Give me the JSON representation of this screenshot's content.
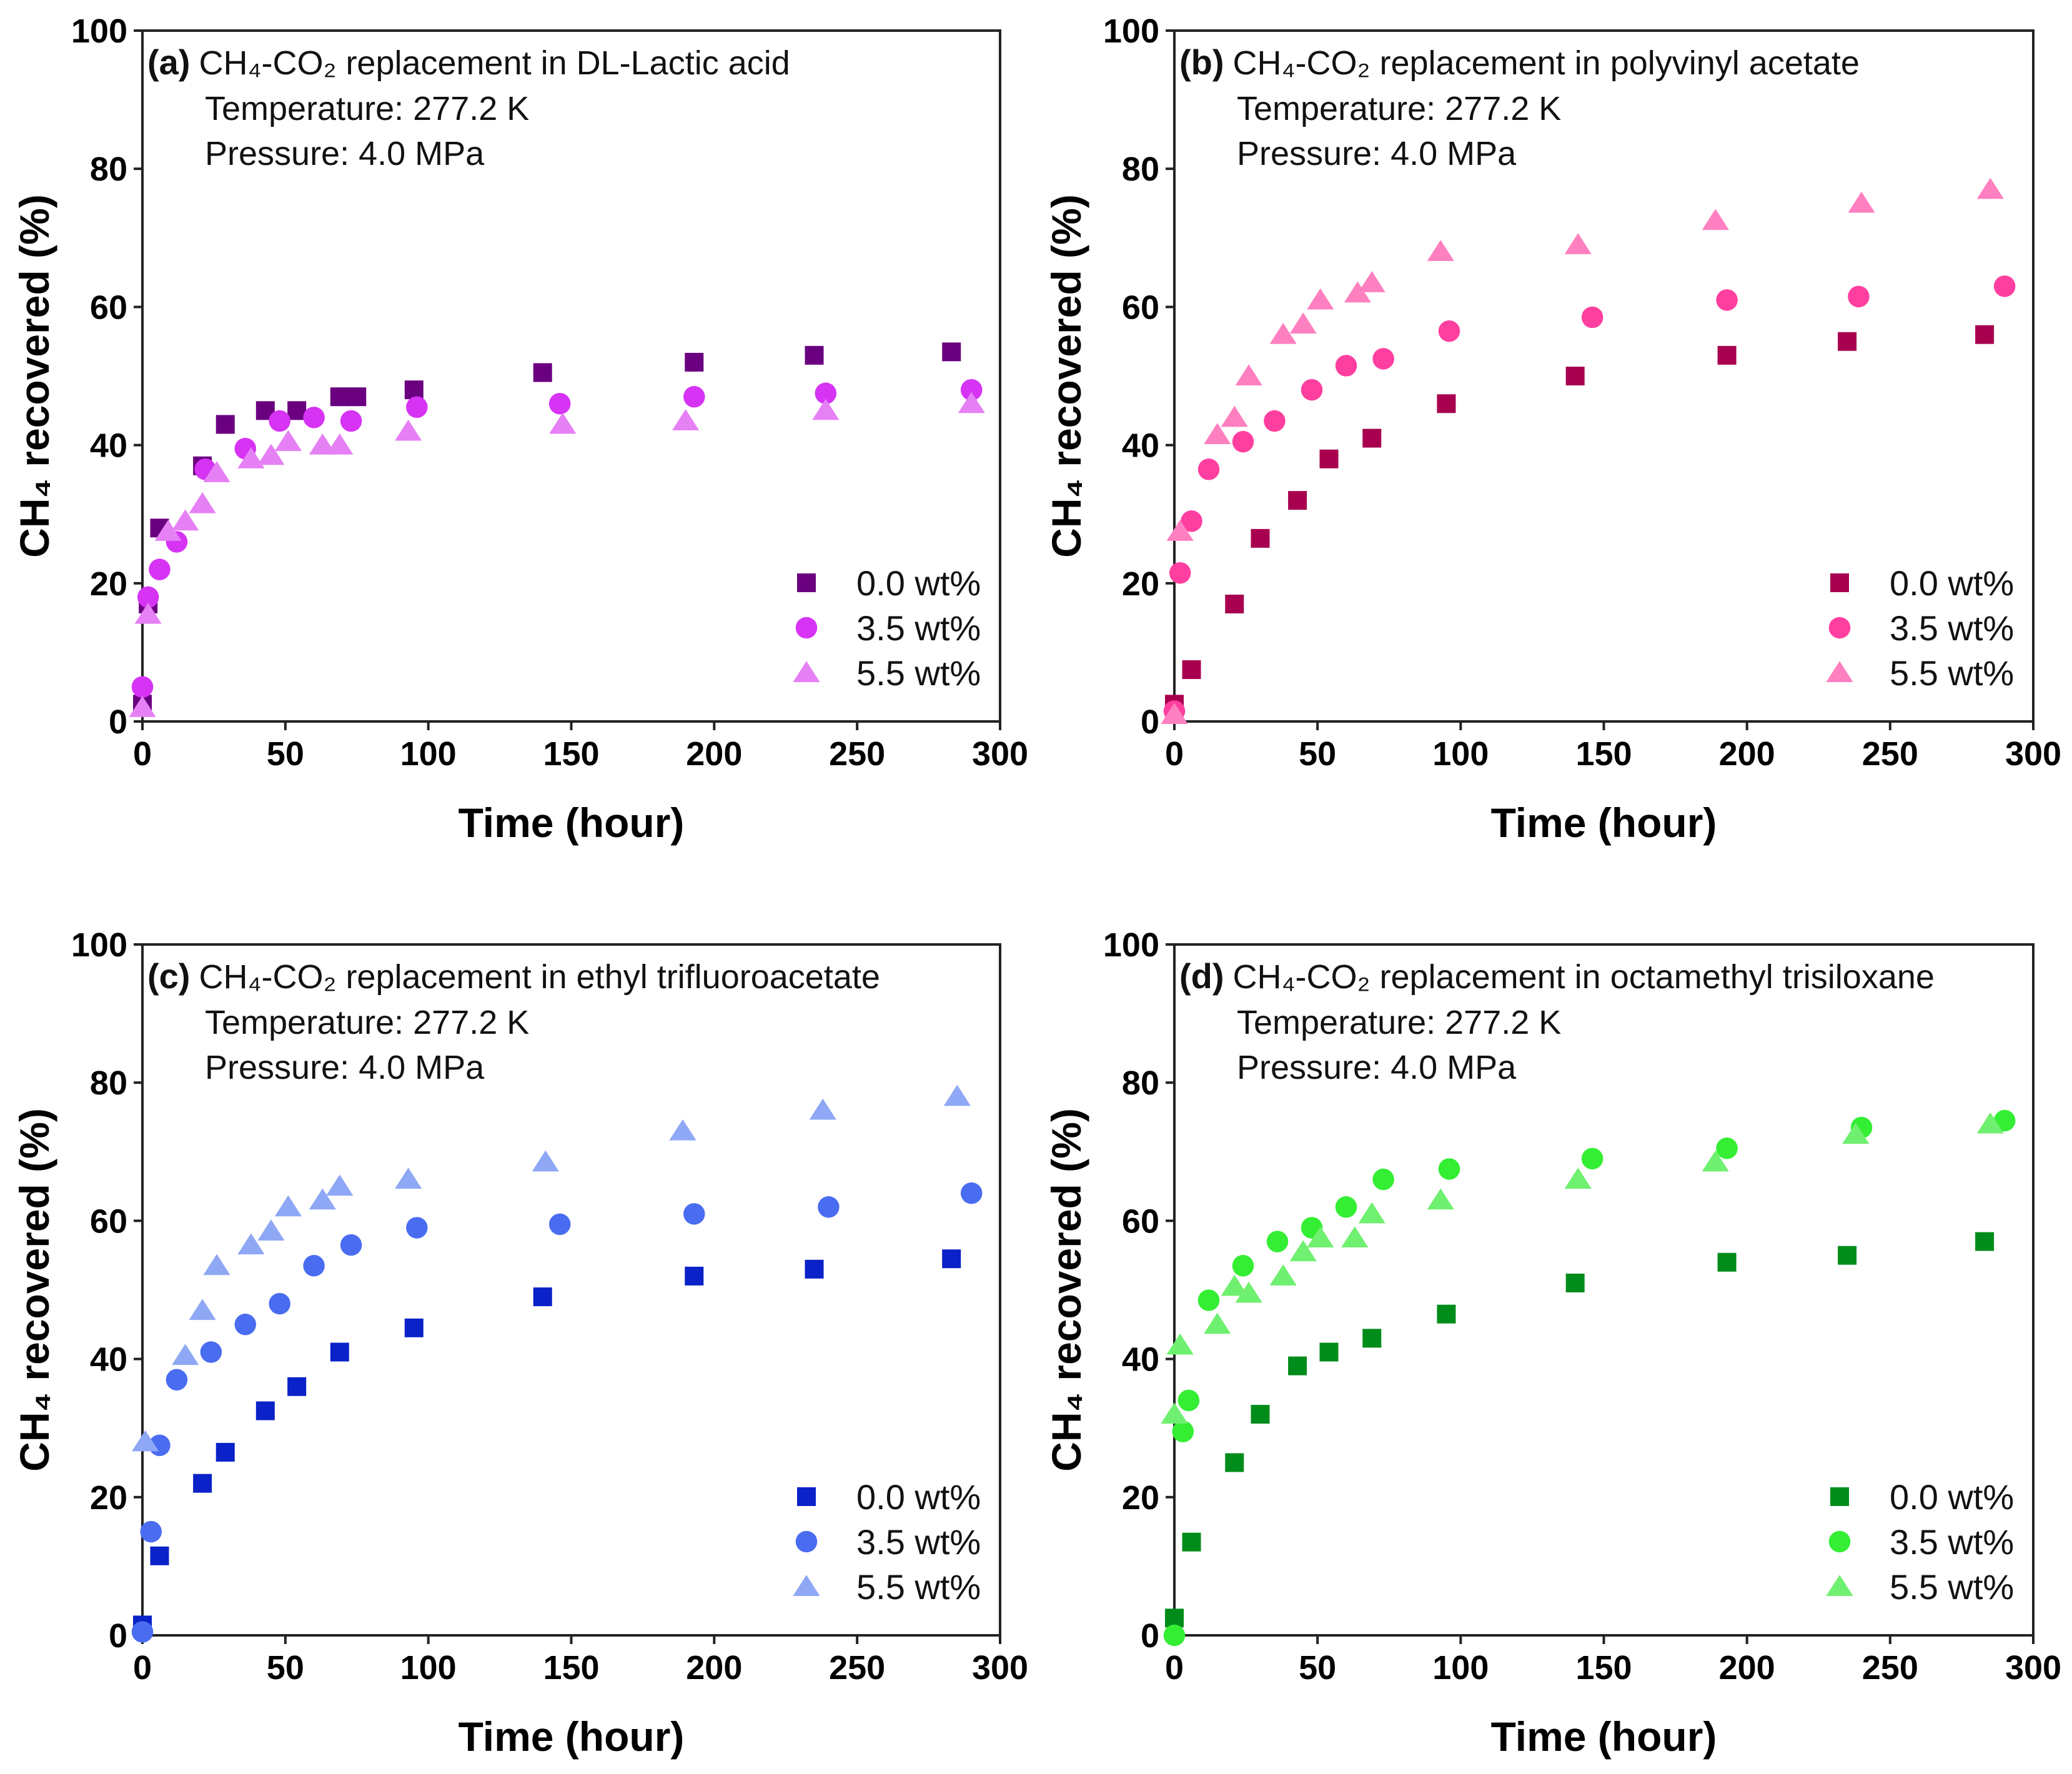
{
  "chart_data": [
    {
      "type": "scatter",
      "panel_label": "(a)",
      "title": "CH₄-CO₂ replacement in DL-Lactic acid",
      "annotations": [
        "Temperature: 277.2 K",
        "Pressure: 4.0 MPa"
      ],
      "xlabel": "Time (hour)",
      "ylabel": "CH₄ recovered (%)",
      "xlim": [
        0,
        300
      ],
      "ylim": [
        0,
        100
      ],
      "xticks": [
        0,
        50,
        100,
        150,
        200,
        250,
        300
      ],
      "yticks": [
        0,
        20,
        40,
        60,
        80,
        100
      ],
      "legend_position": "bottom-right",
      "series": [
        {
          "name": "0.0 wt%",
          "marker": "square",
          "color": "#6a0080",
          "points": [
            [
              0,
              2.5
            ],
            [
              2,
              17
            ],
            [
              6,
              28
            ],
            [
              21,
              37
            ],
            [
              29,
              43
            ],
            [
              43,
              45
            ],
            [
              54,
              45
            ],
            [
              69,
              47
            ],
            [
              75,
              47
            ],
            [
              95,
              48
            ],
            [
              140,
              50.5
            ],
            [
              193,
              52
            ],
            [
              235,
              53
            ],
            [
              283,
              53.5
            ]
          ]
        },
        {
          "name": "3.5 wt%",
          "marker": "circle",
          "color": "#d633f5",
          "points": [
            [
              0,
              5
            ],
            [
              2,
              18
            ],
            [
              6,
              22
            ],
            [
              12,
              26
            ],
            [
              22,
              36.5
            ],
            [
              36,
              39.5
            ],
            [
              48,
              43.5
            ],
            [
              60,
              44
            ],
            [
              73,
              43.5
            ],
            [
              96,
              45.5
            ],
            [
              146,
              46
            ],
            [
              193,
              47
            ],
            [
              239,
              47.5
            ],
            [
              290,
              48
            ]
          ]
        },
        {
          "name": "5.5 wt%",
          "marker": "triangle",
          "color": "#e680f5",
          "points": [
            [
              0,
              2
            ],
            [
              2,
              15.5
            ],
            [
              9,
              27.5
            ],
            [
              15,
              29
            ],
            [
              21,
              31.5
            ],
            [
              26,
              36
            ],
            [
              38,
              38
            ],
            [
              45,
              38.5
            ],
            [
              51,
              40.5
            ],
            [
              63,
              40
            ],
            [
              69,
              40
            ],
            [
              93,
              42
            ],
            [
              147,
              43
            ],
            [
              190,
              43.5
            ],
            [
              239,
              45
            ],
            [
              290,
              46
            ]
          ]
        }
      ]
    },
    {
      "type": "scatter",
      "panel_label": "(b)",
      "title": "CH₄-CO₂ replacement in polyvinyl acetate",
      "annotations": [
        "Temperature: 277.2 K",
        "Pressure: 4.0 MPa"
      ],
      "xlabel": "Time (hour)",
      "ylabel": "CH₄ recovered (%)",
      "xlim": [
        0,
        300
      ],
      "ylim": [
        0,
        100
      ],
      "xticks": [
        0,
        50,
        100,
        150,
        200,
        250,
        300
      ],
      "yticks": [
        0,
        20,
        40,
        60,
        80,
        100
      ],
      "legend_position": "bottom-right",
      "series": [
        {
          "name": "0.0 wt%",
          "marker": "square",
          "color": "#a8004f",
          "points": [
            [
              0,
              2.5
            ],
            [
              6,
              7.5
            ],
            [
              21,
              17
            ],
            [
              30,
              26.5
            ],
            [
              43,
              32
            ],
            [
              54,
              38
            ],
            [
              69,
              41
            ],
            [
              95,
              46
            ],
            [
              140,
              50
            ],
            [
              193,
              53
            ],
            [
              235,
              55
            ],
            [
              283,
              56
            ]
          ]
        },
        {
          "name": "3.5 wt%",
          "marker": "circle",
          "color": "#ff3fa0",
          "points": [
            [
              0,
              1.5
            ],
            [
              2,
              21.5
            ],
            [
              6,
              29
            ],
            [
              12,
              36.5
            ],
            [
              24,
              40.5
            ],
            [
              35,
              43.5
            ],
            [
              48,
              48
            ],
            [
              60,
              51.5
            ],
            [
              73,
              52.5
            ],
            [
              96,
              56.5
            ],
            [
              146,
              58.5
            ],
            [
              193,
              61
            ],
            [
              239,
              61.5
            ],
            [
              290,
              63
            ]
          ]
        },
        {
          "name": "5.5 wt%",
          "marker": "triangle",
          "color": "#ff80c0",
          "points": [
            [
              0,
              1
            ],
            [
              2,
              27.5
            ],
            [
              15,
              41.5
            ],
            [
              21,
              44
            ],
            [
              26,
              50
            ],
            [
              38,
              56
            ],
            [
              45,
              57.5
            ],
            [
              51,
              61
            ],
            [
              64,
              62
            ],
            [
              69,
              63.5
            ],
            [
              93,
              68
            ],
            [
              141,
              69
            ],
            [
              189,
              72.5
            ],
            [
              240,
              75
            ],
            [
              285,
              77
            ]
          ]
        }
      ]
    },
    {
      "type": "scatter",
      "panel_label": "(c)",
      "title": "CH₄-CO₂ replacement in ethyl trifluoroacetate",
      "annotations": [
        "Temperature: 277.2 K",
        "Pressure: 4.0 MPa"
      ],
      "xlabel": "Time (hour)",
      "ylabel": "CH₄ recovered (%)",
      "xlim": [
        0,
        300
      ],
      "ylim": [
        0,
        100
      ],
      "xticks": [
        0,
        50,
        100,
        150,
        200,
        250,
        300
      ],
      "yticks": [
        0,
        20,
        40,
        60,
        80,
        100
      ],
      "legend_position": "bottom-right",
      "series": [
        {
          "name": "0.0 wt%",
          "marker": "square",
          "color": "#0a22c8",
          "points": [
            [
              0,
              1.5
            ],
            [
              6,
              11.5
            ],
            [
              21,
              22
            ],
            [
              29,
              26.5
            ],
            [
              43,
              32.5
            ],
            [
              54,
              36
            ],
            [
              69,
              41
            ],
            [
              95,
              44.5
            ],
            [
              140,
              49
            ],
            [
              193,
              52
            ],
            [
              235,
              53
            ],
            [
              283,
              54.5
            ]
          ]
        },
        {
          "name": "3.5 wt%",
          "marker": "circle",
          "color": "#4a6cf0",
          "points": [
            [
              0,
              0.5
            ],
            [
              3,
              15
            ],
            [
              6,
              27.5
            ],
            [
              12,
              37
            ],
            [
              24,
              41
            ],
            [
              36,
              45
            ],
            [
              48,
              48
            ],
            [
              60,
              53.5
            ],
            [
              73,
              56.5
            ],
            [
              96,
              59
            ],
            [
              146,
              59.5
            ],
            [
              193,
              61
            ],
            [
              240,
              62
            ],
            [
              290,
              64
            ]
          ]
        },
        {
          "name": "5.5 wt%",
          "marker": "triangle",
          "color": "#8ea8f5",
          "points": [
            [
              1,
              28
            ],
            [
              15,
              40.5
            ],
            [
              21,
              47
            ],
            [
              26,
              53.5
            ],
            [
              38,
              56.5
            ],
            [
              45,
              58.5
            ],
            [
              51,
              62
            ],
            [
              63,
              63
            ],
            [
              69,
              65
            ],
            [
              93,
              66
            ],
            [
              141,
              68.5
            ],
            [
              189,
              73
            ],
            [
              238,
              76
            ],
            [
              285,
              78
            ]
          ]
        }
      ]
    },
    {
      "type": "scatter",
      "panel_label": "(d)",
      "title": "CH₄-CO₂ replacement in octamethyl trisiloxane",
      "annotations": [
        "Temperature: 277.2 K",
        "Pressure: 4.0 MPa"
      ],
      "xlabel": "Time (hour)",
      "ylabel": "CH₄ recovered (%)",
      "xlim": [
        0,
        300
      ],
      "ylim": [
        0,
        100
      ],
      "xticks": [
        0,
        50,
        100,
        150,
        200,
        250,
        300
      ],
      "yticks": [
        0,
        20,
        40,
        60,
        80,
        100
      ],
      "legend_position": "bottom-right",
      "series": [
        {
          "name": "0.0 wt%",
          "marker": "square",
          "color": "#008c1a",
          "points": [
            [
              0,
              2.5
            ],
            [
              6,
              13.5
            ],
            [
              21,
              25
            ],
            [
              30,
              32
            ],
            [
              43,
              39
            ],
            [
              54,
              41
            ],
            [
              69,
              43
            ],
            [
              95,
              46.5
            ],
            [
              140,
              51
            ],
            [
              193,
              54
            ],
            [
              235,
              55
            ],
            [
              283,
              57
            ]
          ]
        },
        {
          "name": "3.5 wt%",
          "marker": "circle",
          "color": "#33ee33",
          "points": [
            [
              0,
              0
            ],
            [
              3,
              29.5
            ],
            [
              5,
              34
            ],
            [
              12,
              48.5
            ],
            [
              24,
              53.5
            ],
            [
              36,
              57
            ],
            [
              48,
              59
            ],
            [
              60,
              62
            ],
            [
              73,
              66
            ],
            [
              96,
              67.5
            ],
            [
              146,
              69
            ],
            [
              193,
              70.5
            ],
            [
              240,
              73.5
            ],
            [
              290,
              74.5
            ]
          ]
        },
        {
          "name": "5.5 wt%",
          "marker": "triangle",
          "color": "#70f070",
          "points": [
            [
              0,
              32
            ],
            [
              2,
              42
            ],
            [
              15,
              45
            ],
            [
              21,
              50.5
            ],
            [
              26,
              49.5
            ],
            [
              38,
              52
            ],
            [
              45,
              55.5
            ],
            [
              51,
              57.5
            ],
            [
              63,
              57.5
            ],
            [
              69,
              61
            ],
            [
              93,
              63
            ],
            [
              141,
              66
            ],
            [
              189,
              68.5
            ],
            [
              238,
              72.5
            ],
            [
              285,
              74
            ]
          ]
        }
      ]
    }
  ]
}
